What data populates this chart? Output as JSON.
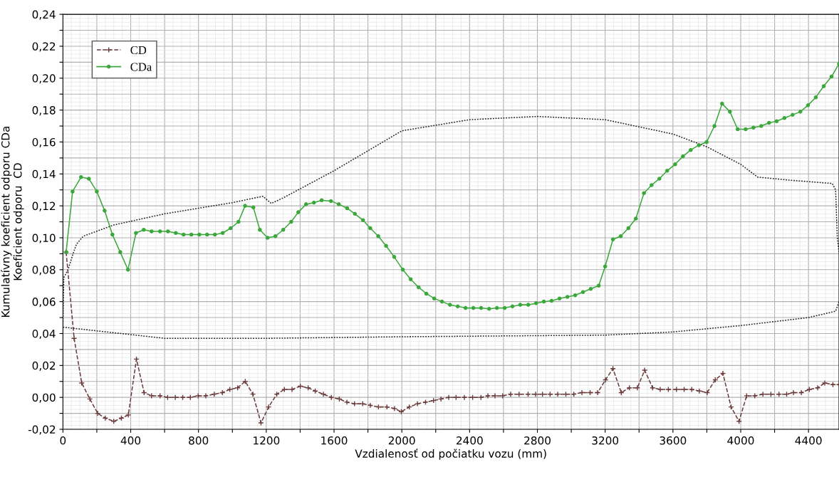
{
  "chart_data": {
    "type": "line",
    "xlabel": "Vzdialenosť od počiatku vozu (mm)",
    "ylabel": "Kumulatívny koeficient odporu CDa\nKoeficient odporu  CD",
    "xlim": [
      0,
      4580
    ],
    "ylim": [
      -0.02,
      0.24
    ],
    "xticks": [
      0,
      {
        "value": 200,
        "label": null
      },
      400,
      {
        "value": 600,
        "label": null
      },
      800,
      {
        "value": 1000,
        "label": null
      },
      1200,
      {
        "value": 1400,
        "label": null
      },
      1600,
      {
        "value": 1800,
        "label": null
      },
      2000,
      {
        "value": 2200,
        "label": null
      },
      2400,
      {
        "value": 2600,
        "label": null
      },
      2800,
      {
        "value": 3000,
        "label": null
      },
      3200,
      {
        "value": 3400,
        "label": null
      },
      3600,
      {
        "value": 3800,
        "label": null
      },
      4000,
      {
        "value": 4200,
        "label": null
      },
      4400
    ],
    "yticks": [
      {
        "value": -0.02,
        "label": "-0,02"
      },
      {
        "value": -0.01,
        "label": null
      },
      {
        "value": 0.0,
        "label": "0,00"
      },
      {
        "value": 0.01,
        "label": null
      },
      {
        "value": 0.02,
        "label": "0,02"
      },
      {
        "value": 0.03,
        "label": null
      },
      {
        "value": 0.04,
        "label": "0,04"
      },
      {
        "value": 0.05,
        "label": null
      },
      {
        "value": 0.06,
        "label": "0,06"
      },
      {
        "value": 0.07,
        "label": null
      },
      {
        "value": 0.08,
        "label": "0,08"
      },
      {
        "value": 0.09,
        "label": null
      },
      {
        "value": 0.1,
        "label": "0,10"
      },
      {
        "value": 0.11,
        "label": null
      },
      {
        "value": 0.12,
        "label": "0,12"
      },
      {
        "value": 0.13,
        "label": null
      },
      {
        "value": 0.14,
        "label": "0,14"
      },
      {
        "value": 0.15,
        "label": null
      },
      {
        "value": 0.16,
        "label": "0,16"
      },
      {
        "value": 0.17,
        "label": null
      },
      {
        "value": 0.18,
        "label": "0,18"
      },
      {
        "value": 0.19,
        "label": null
      },
      {
        "value": 0.2,
        "label": "0,20"
      },
      {
        "value": 0.21,
        "label": null
      },
      {
        "value": 0.22,
        "label": "0,22"
      },
      {
        "value": 0.23,
        "label": null
      },
      {
        "value": 0.24,
        "label": "0,24"
      }
    ],
    "grid": true,
    "legend": "top left",
    "series": [
      {
        "color": "#222222",
        "line_style": "dotted",
        "marker": "none",
        "x": [
          0,
          5,
          30,
          60,
          80,
          120,
          300,
          600,
          1000,
          1180,
          1230,
          1300,
          1600,
          2000,
          2400,
          2800,
          3200,
          3600,
          3800,
          4000,
          4100,
          4300,
          4540,
          4560,
          4570,
          4580
        ],
        "values": [
          0.044,
          0.075,
          0.08,
          0.09,
          0.096,
          0.101,
          0.108,
          0.115,
          0.122,
          0.126,
          0.1215,
          0.125,
          0.142,
          0.167,
          0.174,
          0.176,
          0.174,
          0.165,
          0.157,
          0.146,
          0.138,
          0.136,
          0.134,
          0.13,
          0.1,
          0.091
        ]
      },
      {
        "color": "#222222",
        "line_style": "dotted",
        "marker": "none",
        "x": [
          0,
          600,
          1200,
          2000,
          3200,
          3600,
          4000,
          4400,
          4560,
          4580
        ],
        "values": [
          0.044,
          0.037,
          0.037,
          0.038,
          0.039,
          0.041,
          0.045,
          0.05,
          0.054,
          0.06
        ]
      },
      {
        "name": "CD",
        "color": "#6b3a3a",
        "line_style": "dashed",
        "marker": "cross",
        "x": [
          19,
          66,
          111,
          159,
          205,
          250,
          300,
          345,
          386,
          434,
          479,
          523,
          573,
          618,
          663,
          707,
          752,
          798,
          843,
          893,
          941,
          985,
          1031,
          1076,
          1121,
          1169,
          1214,
          1262,
          1307,
          1352,
          1401,
          1447,
          1489,
          1537,
          1584,
          1631,
          1676,
          1721,
          1769,
          1814,
          1862,
          1912,
          1957,
          1997,
          2044,
          2092,
          2140,
          2187,
          2231,
          2277,
          2320,
          2369,
          2418,
          2467,
          2508,
          2550,
          2595,
          2642,
          2692,
          2745,
          2790,
          2830,
          2875,
          2920,
          2968,
          3015,
          3063,
          3111,
          3156,
          3202,
          3246,
          3295,
          3343,
          3390,
          3433,
          3480,
          3525,
          3573,
          3621,
          3666,
          3711,
          3756,
          3802,
          3850,
          3895,
          3943,
          3990,
          4035,
          4083,
          4131,
          4178,
          4226,
          4271,
          4311,
          4358,
          4405,
          4454,
          4496,
          4544,
          4580
        ],
        "values": [
          0.091,
          0.037,
          0.009,
          -0.001,
          -0.01,
          -0.013,
          -0.015,
          -0.013,
          -0.011,
          0.024,
          0.003,
          0.001,
          0.001,
          0.0,
          0.0,
          0.0,
          0.0,
          0.001,
          0.001,
          0.002,
          0.003,
          0.005,
          0.006,
          0.01,
          0.002,
          -0.016,
          -0.006,
          0.002,
          0.005,
          0.005,
          0.007,
          0.006,
          0.004,
          0.002,
          0.0,
          -0.001,
          -0.003,
          -0.004,
          -0.004,
          -0.005,
          -0.006,
          -0.006,
          -0.007,
          -0.009,
          -0.006,
          -0.004,
          -0.003,
          -0.002,
          -0.001,
          0.0,
          0.0,
          0.0,
          0.0,
          0.0,
          0.001,
          0.001,
          0.001,
          0.002,
          0.002,
          0.002,
          0.002,
          0.002,
          0.002,
          0.002,
          0.002,
          0.002,
          0.003,
          0.003,
          0.003,
          0.011,
          0.018,
          0.003,
          0.006,
          0.006,
          0.017,
          0.006,
          0.005,
          0.005,
          0.005,
          0.005,
          0.005,
          0.004,
          0.003,
          0.011,
          0.015,
          -0.006,
          -0.015,
          0.001,
          0.001,
          0.002,
          0.002,
          0.002,
          0.002,
          0.003,
          0.003,
          0.005,
          0.006,
          0.009,
          0.008,
          0.008
        ]
      },
      {
        "name": "CDa",
        "color": "#3aa83a",
        "line_style": "solid",
        "marker": "circle",
        "x": [
          19,
          57,
          107,
          153,
          200,
          246,
          292,
          338,
          384,
          431,
          477,
          523,
          573,
          620,
          666,
          712,
          758,
          805,
          851,
          897,
          943,
          990,
          1036,
          1075,
          1124,
          1162,
          1208,
          1254,
          1300,
          1347,
          1389,
          1435,
          1481,
          1527,
          1582,
          1628,
          1677,
          1723,
          1771,
          1814,
          1861,
          1907,
          1955,
          2006,
          2052,
          2099,
          2145,
          2191,
          2237,
          2284,
          2330,
          2376,
          2422,
          2468,
          2515,
          2561,
          2607,
          2653,
          2699,
          2746,
          2792,
          2838,
          2884,
          2931,
          2977,
          3023,
          3069,
          3115,
          3162,
          3200,
          3246,
          3292,
          3337,
          3381,
          3429,
          3474,
          3520,
          3566,
          3613,
          3659,
          3705,
          3753,
          3799,
          3845,
          3890,
          3936,
          3982,
          4029,
          4075,
          4121,
          4167,
          4212,
          4258,
          4306,
          4352,
          4397,
          4443,
          4490,
          4536,
          4580
        ],
        "values": [
          0.091,
          0.129,
          0.138,
          0.137,
          0.129,
          0.117,
          0.102,
          0.091,
          0.08,
          0.103,
          0.105,
          0.104,
          0.104,
          0.104,
          0.103,
          0.102,
          0.102,
          0.102,
          0.102,
          0.102,
          0.103,
          0.106,
          0.11,
          0.12,
          0.119,
          0.105,
          0.1,
          0.101,
          0.105,
          0.11,
          0.116,
          0.121,
          0.122,
          0.1235,
          0.123,
          0.121,
          0.1185,
          0.115,
          0.111,
          0.106,
          0.101,
          0.095,
          0.088,
          0.08,
          0.074,
          0.069,
          0.065,
          0.062,
          0.06,
          0.058,
          0.057,
          0.056,
          0.056,
          0.056,
          0.0555,
          0.056,
          0.056,
          0.057,
          0.058,
          0.058,
          0.059,
          0.06,
          0.0605,
          0.062,
          0.063,
          0.064,
          0.066,
          0.068,
          0.07,
          0.082,
          0.099,
          0.101,
          0.106,
          0.112,
          0.128,
          0.133,
          0.137,
          0.142,
          0.146,
          0.151,
          0.155,
          0.158,
          0.16,
          0.17,
          0.184,
          0.179,
          0.168,
          0.168,
          0.169,
          0.17,
          0.172,
          0.173,
          0.175,
          0.177,
          0.179,
          0.183,
          0.188,
          0.195,
          0.201,
          0.209
        ]
      }
    ]
  }
}
